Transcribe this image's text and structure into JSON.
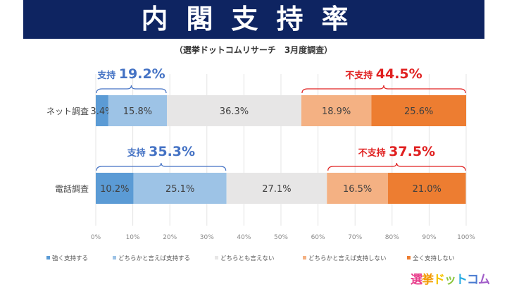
{
  "header": {
    "title": "内閣支持率",
    "subtitle": "（選挙ドットコムリサーチ　3月度調査）"
  },
  "chart_data": {
    "type": "bar",
    "orientation": "horizontal",
    "stacked": "percent",
    "categories": [
      "ネット調査",
      "電話調査"
    ],
    "series": [
      {
        "name": "強く支持する",
        "values": [
          3.4,
          10.2
        ],
        "color": "#5b9bd5"
      },
      {
        "name": "どちらかと言えば支持する",
        "values": [
          15.8,
          25.1
        ],
        "color": "#9dc3e6"
      },
      {
        "name": "どちらとも言えない",
        "values": [
          36.3,
          27.1
        ],
        "color": "#e7e6e6"
      },
      {
        "name": "どちらかと言えば支持しない",
        "values": [
          18.9,
          16.5
        ],
        "color": "#f4b183"
      },
      {
        "name": "全く支持しない",
        "values": [
          25.6,
          21.0
        ],
        "color": "#ed7d31"
      }
    ],
    "xlim": [
      0,
      100
    ],
    "xticks": [
      "0%",
      "10%",
      "20%",
      "30%",
      "40%",
      "50%",
      "60%",
      "70%",
      "80%",
      "90%",
      "100%"
    ],
    "grid": true,
    "legend": "bottom",
    "annotations": [
      {
        "row": 0,
        "label": "支持",
        "value": "19.2%",
        "color": "#4472c4",
        "from": 0,
        "to": 19.2
      },
      {
        "row": 0,
        "label": "不支持",
        "value": "44.5%",
        "color": "#e02020",
        "from": 55.5,
        "to": 100
      },
      {
        "row": 1,
        "label": "支持",
        "value": "35.3%",
        "color": "#4472c4",
        "from": 0,
        "to": 35.3
      },
      {
        "row": 1,
        "label": "不支持",
        "value": "37.5%",
        "color": "#e02020",
        "from": 62.5,
        "to": 100
      }
    ]
  },
  "logo": {
    "text": "選挙ドットコム"
  }
}
